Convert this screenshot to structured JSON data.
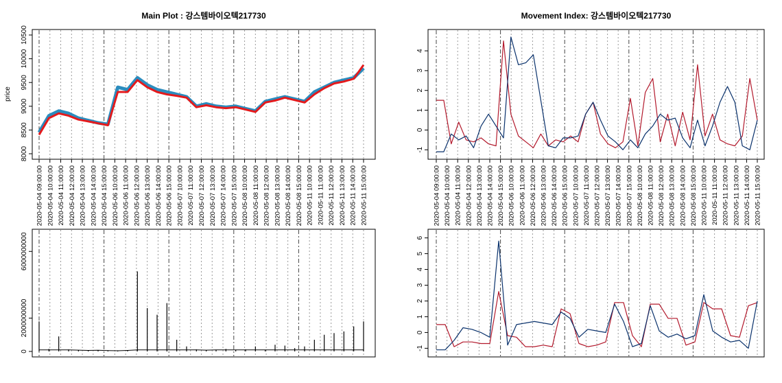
{
  "chart_data": [
    {
      "type": "line",
      "title": "Main Plot : 강스템바이오텍217730",
      "ylabel": "price",
      "ylim": [
        8000,
        10500
      ],
      "yticks": [
        8000,
        8500,
        9000,
        9500,
        10000,
        10500
      ],
      "x_labels": [
        "2020-05-04 09:00:00",
        "2020-05-04 10:00:00",
        "2020-05-04 11:00:00",
        "2020-05-04 12:00:00",
        "2020-05-04 13:00:00",
        "2020-05-04 14:00:00",
        "2020-05-04 15:00:00",
        "2020-05-06 10:00:00",
        "2020-05-06 11:00:00",
        "2020-05-06 12:00:00",
        "2020-05-06 13:00:00",
        "2020-05-06 14:00:00",
        "2020-05-06 15:00:00",
        "2020-05-07 10:00:00",
        "2020-05-07 11:00:00",
        "2020-05-07 12:00:00",
        "2020-05-07 13:00:00",
        "2020-05-07 14:00:00",
        "2020-05-07 15:00:00",
        "2020-05-08 10:00:00",
        "2020-05-08 11:00:00",
        "2020-05-08 12:00:00",
        "2020-05-08 13:00:00",
        "2020-05-08 14:00:00",
        "2020-05-08 15:00:00",
        "2020-05-11 10:00:00",
        "2020-05-11 11:00:00",
        "2020-05-11 12:00:00",
        "2020-05-11 13:00:00",
        "2020-05-11 14:00:00",
        "2020-05-11 15:00:00"
      ],
      "day_boundaries": [
        "2020-05-04 09:00:00",
        "2020-05-04 15:00:00",
        "2020-05-06 15:00:00",
        "2020-05-07 15:00:00",
        "2020-05-08 15:00:00"
      ],
      "series": [
        {
          "color": "#2b8cbe",
          "values": [
            8450,
            8800,
            8900,
            8850,
            8750,
            8700,
            8650,
            8620,
            9400,
            9350,
            9600,
            9450,
            9350,
            9300,
            9250,
            9200,
            9000,
            9050,
            9000,
            8980,
            9000,
            8950,
            8900,
            9100,
            9150,
            9200,
            9150,
            9100,
            9300,
            9400,
            9500,
            9550,
            9600,
            9800
          ]
        },
        {
          "color": "#e41a1c",
          "values": [
            8400,
            8750,
            8850,
            8800,
            8720,
            8680,
            8640,
            8600,
            9300,
            9300,
            9550,
            9400,
            9300,
            9250,
            9220,
            9180,
            8980,
            9020,
            8980,
            8960,
            8980,
            8930,
            8880,
            9080,
            9120,
            9180,
            9130,
            9080,
            9250,
            9380,
            9480,
            9520,
            9580,
            9870
          ]
        }
      ]
    },
    {
      "type": "line",
      "title": "Movement Index: 강스템바이오텍217730",
      "ylim": [
        -1.2,
        4.8
      ],
      "yticks": [
        -1,
        0,
        1,
        2,
        3,
        4
      ],
      "x_labels": [
        "2020-05-04 09:00:00",
        "2020-05-04 10:00:00",
        "2020-05-04 11:00:00",
        "2020-05-04 12:00:00",
        "2020-05-04 13:00:00",
        "2020-05-04 14:00:00",
        "2020-05-04 15:00:00",
        "2020-05-06 10:00:00",
        "2020-05-06 11:00:00",
        "2020-05-06 12:00:00",
        "2020-05-06 13:00:00",
        "2020-05-06 14:00:00",
        "2020-05-06 15:00:00",
        "2020-05-07 10:00:00",
        "2020-05-07 11:00:00",
        "2020-05-07 12:00:00",
        "2020-05-07 13:00:00",
        "2020-05-07 14:00:00",
        "2020-05-07 15:00:00",
        "2020-05-08 10:00:00",
        "2020-05-08 11:00:00",
        "2020-05-08 12:00:00",
        "2020-05-08 13:00:00",
        "2020-05-08 14:00:00",
        "2020-05-08 15:00:00",
        "2020-05-11 10:00:00",
        "2020-05-11 11:00:00",
        "2020-05-11 12:00:00",
        "2020-05-11 13:00:00",
        "2020-05-11 14:00:00",
        "2020-05-11 15:00:00"
      ],
      "day_boundaries": [
        "2020-05-04 09:00:00",
        "2020-05-04 15:00:00",
        "2020-05-06 15:00:00",
        "2020-05-07 15:00:00",
        "2020-05-08 15:00:00"
      ],
      "series": [
        {
          "color": "#b2182b",
          "values": [
            1.5,
            1.5,
            -0.7,
            0.4,
            -0.5,
            -0.6,
            -0.4,
            -0.7,
            -0.8,
            4.5,
            0.8,
            -0.3,
            -0.6,
            -0.9,
            -0.2,
            -0.8,
            -0.5,
            -0.6,
            -0.3,
            -0.6,
            0.8,
            1.4,
            -0.2,
            -0.7,
            -0.9,
            -0.6,
            1.6,
            -0.8,
            1.9,
            2.6,
            -0.6,
            0.8,
            -0.8,
            0.9,
            -0.5,
            3.3,
            -0.3,
            0.8,
            -0.5,
            -0.7,
            -0.8,
            -0.3,
            2.6,
            0.5
          ]
        },
        {
          "color": "#08306b",
          "values": [
            -1.1,
            -1.1,
            -0.2,
            -0.5,
            -0.3,
            -0.9,
            0.2,
            0.8,
            0.2,
            -0.4,
            4.7,
            3.3,
            3.4,
            3.8,
            1.5,
            -0.8,
            -0.9,
            -0.4,
            -0.4,
            -0.3,
            0.8,
            1.4,
            0.5,
            -0.3,
            -0.6,
            -1.0,
            -0.5,
            -0.9,
            -0.2,
            0.2,
            0.8,
            0.5,
            0.6,
            -0.4,
            -0.9,
            0.5,
            -0.8,
            0.2,
            1.4,
            2.2,
            1.4,
            -0.8,
            -1.0,
            0.5
          ]
        }
      ]
    },
    {
      "type": "bar",
      "ylim": [
        0,
        7000000000
      ],
      "yticks": [
        0,
        2000000000,
        6000000000
      ],
      "series": [
        {
          "color": "#000000",
          "values": [
            1800000000,
            150000000,
            900000000,
            120000000,
            80000000,
            60000000,
            70000000,
            50000000,
            40000000,
            60000000,
            4800000000,
            2600000000,
            2200000000,
            2900000000,
            700000000,
            300000000,
            120000000,
            80000000,
            100000000,
            150000000,
            90000000,
            120000000,
            300000000,
            100000000,
            400000000,
            350000000,
            200000000,
            300000000,
            700000000,
            1000000000,
            1100000000,
            1200000000,
            1500000000,
            1800000000
          ]
        }
      ]
    },
    {
      "type": "line",
      "ylim": [
        -1.2,
        6.2
      ],
      "yticks": [
        -1,
        0,
        1,
        2,
        3,
        4,
        5,
        6
      ],
      "series": [
        {
          "color": "#b2182b",
          "values": [
            0.5,
            0.5,
            -0.9,
            -0.6,
            -0.6,
            -0.7,
            -0.7,
            2.6,
            -0.2,
            -0.3,
            -0.9,
            -0.9,
            -0.8,
            -0.9,
            1.5,
            1.2,
            -0.7,
            -0.9,
            -0.8,
            -0.6,
            1.9,
            1.9,
            -0.2,
            -0.9,
            1.8,
            1.8,
            0.9,
            0.9,
            -0.8,
            -0.6,
            1.9,
            1.5,
            1.5,
            -0.2,
            -0.3,
            1.7,
            1.9
          ]
        },
        {
          "color": "#08306b",
          "values": [
            -1.1,
            -1.1,
            -0.5,
            0.3,
            0.2,
            0.0,
            -0.3,
            5.8,
            -0.8,
            0.5,
            0.6,
            0.7,
            0.6,
            0.5,
            1.3,
            0.9,
            -0.3,
            0.2,
            0.1,
            0.0,
            1.8,
            0.7,
            -0.9,
            -0.7,
            1.7,
            0.1,
            -0.3,
            -0.1,
            -0.4,
            -0.2,
            2.4,
            0.1,
            -0.3,
            -0.6,
            -0.5,
            -1.0,
            2.0
          ]
        }
      ]
    }
  ]
}
